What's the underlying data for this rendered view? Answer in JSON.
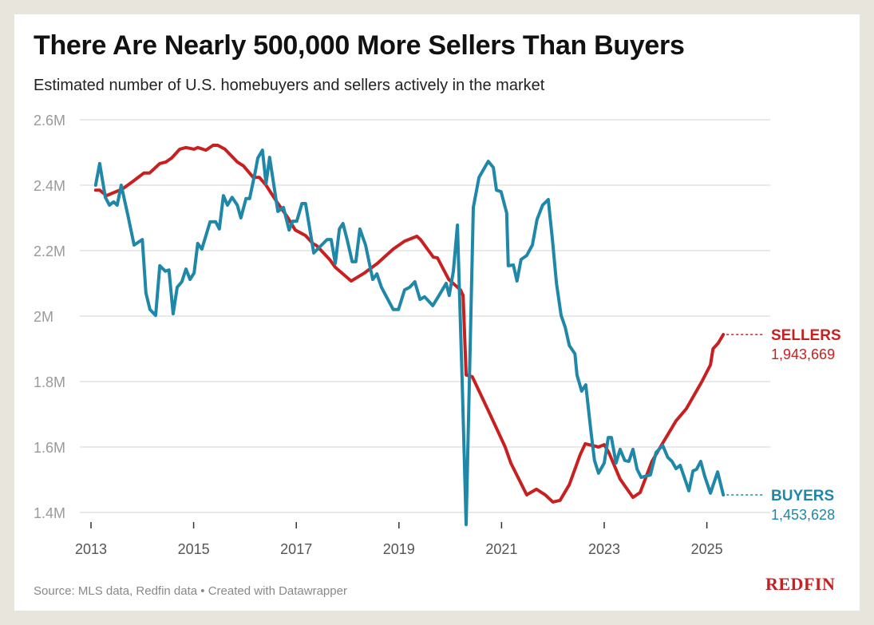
{
  "title": "There Are Nearly 500,000 More Sellers Than Buyers",
  "subtitle": "Estimated number of U.S. homebuyers and sellers actively in the market",
  "source": "Source: MLS data, Redfin data • Created with Datawrapper",
  "logo": "REDFIN",
  "chart_data": {
    "type": "line",
    "title": "There Are Nearly 500,000 More Sellers Than Buyers",
    "xlim": [
      2013,
      2026
    ],
    "ylim": [
      1.4,
      2.6
    ],
    "x_ticks": [
      2013,
      2015,
      2017,
      2019,
      2021,
      2023,
      2025
    ],
    "x_tick_labels": [
      "2013",
      "2015",
      "2017",
      "2019",
      "2021",
      "2023",
      "2025"
    ],
    "y_ticks": [
      1.4,
      1.6,
      1.8,
      2.0,
      2.2,
      2.4,
      2.6
    ],
    "y_tick_labels": [
      "1.4M",
      "1.6M",
      "1.8M",
      "2M",
      "2.2M",
      "2.4M",
      "2.6M"
    ],
    "grid": true,
    "legend": "inline labels at right end of lines",
    "series": [
      {
        "name": "SELLERS",
        "end_label": "1,943,669",
        "color": "#c82021",
        "points": [
          [
            2013.09,
            2.385
          ],
          [
            2013.17,
            2.385
          ],
          [
            2013.3,
            2.368
          ],
          [
            2013.61,
            2.388
          ],
          [
            2013.82,
            2.412
          ],
          [
            2014.03,
            2.437
          ],
          [
            2014.14,
            2.437
          ],
          [
            2014.34,
            2.466
          ],
          [
            2014.46,
            2.471
          ],
          [
            2014.57,
            2.483
          ],
          [
            2014.73,
            2.51
          ],
          [
            2014.85,
            2.515
          ],
          [
            2015.01,
            2.51
          ],
          [
            2015.08,
            2.515
          ],
          [
            2015.24,
            2.507
          ],
          [
            2015.38,
            2.522
          ],
          [
            2015.47,
            2.522
          ],
          [
            2015.61,
            2.51
          ],
          [
            2015.85,
            2.471
          ],
          [
            2015.97,
            2.459
          ],
          [
            2016.16,
            2.424
          ],
          [
            2016.28,
            2.424
          ],
          [
            2016.41,
            2.4
          ],
          [
            2016.62,
            2.349
          ],
          [
            2016.83,
            2.302
          ],
          [
            2016.98,
            2.263
          ],
          [
            2017.18,
            2.246
          ],
          [
            2017.32,
            2.222
          ],
          [
            2017.4,
            2.215
          ],
          [
            2017.65,
            2.173
          ],
          [
            2017.76,
            2.149
          ],
          [
            2018.07,
            2.107
          ],
          [
            2018.33,
            2.132
          ],
          [
            2018.58,
            2.161
          ],
          [
            2018.89,
            2.205
          ],
          [
            2019.11,
            2.229
          ],
          [
            2019.35,
            2.244
          ],
          [
            2019.42,
            2.234
          ],
          [
            2019.67,
            2.18
          ],
          [
            2019.75,
            2.178
          ],
          [
            2019.97,
            2.112
          ],
          [
            2020.2,
            2.08
          ],
          [
            2020.25,
            2.063
          ],
          [
            2020.31,
            1.82
          ],
          [
            2020.43,
            1.815
          ],
          [
            2020.76,
            1.705
          ],
          [
            2021.07,
            1.6
          ],
          [
            2021.18,
            1.551
          ],
          [
            2021.49,
            1.454
          ],
          [
            2021.68,
            1.471
          ],
          [
            2021.85,
            1.454
          ],
          [
            2022.0,
            1.432
          ],
          [
            2022.14,
            1.437
          ],
          [
            2022.32,
            1.485
          ],
          [
            2022.53,
            1.576
          ],
          [
            2022.63,
            1.61
          ],
          [
            2022.89,
            1.6
          ],
          [
            2023.0,
            1.607
          ],
          [
            2023.09,
            1.583
          ],
          [
            2023.31,
            1.502
          ],
          [
            2023.56,
            1.446
          ],
          [
            2023.7,
            1.461
          ],
          [
            2023.93,
            1.556
          ],
          [
            2024.14,
            1.612
          ],
          [
            2024.4,
            1.68
          ],
          [
            2024.6,
            1.717
          ],
          [
            2024.91,
            1.802
          ],
          [
            2025.07,
            1.851
          ],
          [
            2025.12,
            1.9
          ],
          [
            2025.22,
            1.917
          ],
          [
            2025.32,
            1.943669
          ]
        ]
      },
      {
        "name": "BUYERS",
        "end_label": "1,453,628",
        "color": "#1f87a8",
        "points": [
          [
            2013.09,
            2.4
          ],
          [
            2013.17,
            2.466
          ],
          [
            2013.28,
            2.363
          ],
          [
            2013.36,
            2.339
          ],
          [
            2013.44,
            2.349
          ],
          [
            2013.51,
            2.339
          ],
          [
            2013.59,
            2.4
          ],
          [
            2013.72,
            2.307
          ],
          [
            2013.84,
            2.217
          ],
          [
            2014.0,
            2.234
          ],
          [
            2014.07,
            2.071
          ],
          [
            2014.15,
            2.02
          ],
          [
            2014.26,
            2.002
          ],
          [
            2014.34,
            2.154
          ],
          [
            2014.45,
            2.137
          ],
          [
            2014.52,
            2.141
          ],
          [
            2014.6,
            2.007
          ],
          [
            2014.68,
            2.088
          ],
          [
            2014.77,
            2.105
          ],
          [
            2014.85,
            2.144
          ],
          [
            2014.93,
            2.112
          ],
          [
            2015.01,
            2.132
          ],
          [
            2015.08,
            2.222
          ],
          [
            2015.16,
            2.205
          ],
          [
            2015.32,
            2.288
          ],
          [
            2015.43,
            2.288
          ],
          [
            2015.5,
            2.266
          ],
          [
            2015.58,
            2.368
          ],
          [
            2015.66,
            2.339
          ],
          [
            2015.75,
            2.363
          ],
          [
            2015.85,
            2.339
          ],
          [
            2015.92,
            2.3
          ],
          [
            2016.02,
            2.359
          ],
          [
            2016.09,
            2.359
          ],
          [
            2016.2,
            2.441
          ],
          [
            2016.25,
            2.483
          ],
          [
            2016.34,
            2.507
          ],
          [
            2016.41,
            2.405
          ],
          [
            2016.48,
            2.485
          ],
          [
            2016.64,
            2.32
          ],
          [
            2016.75,
            2.332
          ],
          [
            2016.86,
            2.263
          ],
          [
            2016.93,
            2.29
          ],
          [
            2017.01,
            2.29
          ],
          [
            2017.11,
            2.344
          ],
          [
            2017.18,
            2.344
          ],
          [
            2017.34,
            2.193
          ],
          [
            2017.6,
            2.234
          ],
          [
            2017.68,
            2.234
          ],
          [
            2017.76,
            2.161
          ],
          [
            2017.84,
            2.266
          ],
          [
            2017.91,
            2.283
          ],
          [
            2017.99,
            2.234
          ],
          [
            2018.09,
            2.166
          ],
          [
            2018.16,
            2.166
          ],
          [
            2018.24,
            2.266
          ],
          [
            2018.35,
            2.217
          ],
          [
            2018.49,
            2.112
          ],
          [
            2018.57,
            2.129
          ],
          [
            2018.66,
            2.088
          ],
          [
            2018.89,
            2.02
          ],
          [
            2018.99,
            2.02
          ],
          [
            2019.11,
            2.08
          ],
          [
            2019.21,
            2.088
          ],
          [
            2019.31,
            2.105
          ],
          [
            2019.41,
            2.051
          ],
          [
            2019.5,
            2.059
          ],
          [
            2019.66,
            2.032
          ],
          [
            2019.78,
            2.063
          ],
          [
            2019.92,
            2.1
          ],
          [
            2019.98,
            2.063
          ],
          [
            2020.06,
            2.137
          ],
          [
            2020.14,
            2.278
          ],
          [
            2020.23,
            1.812
          ],
          [
            2020.31,
            1.363
          ],
          [
            2020.45,
            2.332
          ],
          [
            2020.56,
            2.424
          ],
          [
            2020.74,
            2.473
          ],
          [
            2020.84,
            2.454
          ],
          [
            2020.9,
            2.385
          ],
          [
            2020.99,
            2.38
          ],
          [
            2021.1,
            2.315
          ],
          [
            2021.13,
            2.154
          ],
          [
            2021.23,
            2.156
          ],
          [
            2021.3,
            2.107
          ],
          [
            2021.38,
            2.173
          ],
          [
            2021.49,
            2.185
          ],
          [
            2021.6,
            2.217
          ],
          [
            2021.69,
            2.295
          ],
          [
            2021.8,
            2.339
          ],
          [
            2021.91,
            2.356
          ],
          [
            2021.99,
            2.234
          ],
          [
            2022.07,
            2.1
          ],
          [
            2022.16,
            2.002
          ],
          [
            2022.24,
            1.966
          ],
          [
            2022.32,
            1.91
          ],
          [
            2022.43,
            1.885
          ],
          [
            2022.47,
            1.82
          ],
          [
            2022.56,
            1.771
          ],
          [
            2022.64,
            1.79
          ],
          [
            2022.74,
            1.649
          ],
          [
            2022.81,
            1.559
          ],
          [
            2022.89,
            1.52
          ],
          [
            2023.0,
            1.551
          ],
          [
            2023.08,
            1.629
          ],
          [
            2023.14,
            1.629
          ],
          [
            2023.23,
            1.551
          ],
          [
            2023.31,
            1.593
          ],
          [
            2023.4,
            1.559
          ],
          [
            2023.48,
            1.556
          ],
          [
            2023.56,
            1.593
          ],
          [
            2023.64,
            1.532
          ],
          [
            2023.72,
            1.507
          ],
          [
            2023.9,
            1.515
          ],
          [
            2024.01,
            1.583
          ],
          [
            2024.14,
            1.605
          ],
          [
            2024.24,
            1.568
          ],
          [
            2024.32,
            1.556
          ],
          [
            2024.4,
            1.534
          ],
          [
            2024.48,
            1.544
          ],
          [
            2024.65,
            1.466
          ],
          [
            2024.73,
            1.527
          ],
          [
            2024.8,
            1.532
          ],
          [
            2024.88,
            1.556
          ],
          [
            2024.96,
            1.51
          ],
          [
            2025.07,
            1.459
          ],
          [
            2025.21,
            1.524
          ],
          [
            2025.32,
            1.453628
          ]
        ]
      }
    ]
  }
}
